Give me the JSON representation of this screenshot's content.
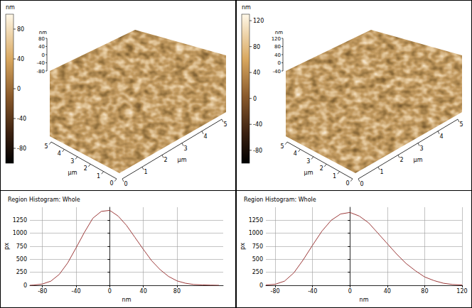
{
  "panels": [
    {
      "type": "afm_3d",
      "colorbar": {
        "label": "nm",
        "range": [
          -100,
          100
        ],
        "ticks": [
          -80,
          -40,
          0,
          40,
          80
        ]
      },
      "z_axis": {
        "label": "nm",
        "ticks": [
          80,
          40,
          0,
          -40,
          -80
        ]
      },
      "x_axis": {
        "label": "µm",
        "ticks": [
          0,
          1,
          2,
          3,
          4,
          5
        ]
      },
      "y_axis": {
        "label": "µm",
        "ticks": [
          0,
          1,
          2,
          3,
          4,
          5
        ]
      }
    },
    {
      "type": "afm_3d",
      "colorbar": {
        "label": "nm",
        "range": [
          -100,
          130
        ],
        "ticks": [
          -80,
          -40,
          0,
          40,
          80,
          120
        ]
      },
      "z_axis": {
        "label": "nm",
        "ticks": [
          120,
          80,
          40,
          0,
          -40
        ]
      },
      "x_axis": {
        "label": "µm",
        "ticks": [
          0,
          1,
          2,
          3,
          4,
          5
        ]
      },
      "y_axis": {
        "label": "µm",
        "ticks": [
          0,
          1,
          2,
          3,
          4,
          5
        ]
      }
    }
  ],
  "chart_data": [
    {
      "type": "line",
      "title": "Region Histogram: Whole",
      "x_label": "nm",
      "y_label": "px",
      "x": [
        -95,
        -90,
        -80,
        -70,
        -60,
        -50,
        -40,
        -30,
        -20,
        -10,
        0,
        10,
        20,
        30,
        40,
        50,
        60,
        70,
        80,
        90,
        100,
        110,
        120,
        130
      ],
      "values": [
        0,
        5,
        25,
        80,
        210,
        430,
        720,
        1020,
        1290,
        1420,
        1440,
        1330,
        1150,
        920,
        690,
        470,
        300,
        170,
        85,
        40,
        15,
        8,
        3,
        0
      ],
      "color": "#9c3a3a",
      "xlim": [
        -95,
        135
      ],
      "xticks": [
        -80,
        -40,
        0,
        40,
        80
      ],
      "ylim": [
        0,
        1500
      ],
      "yticks": [
        0,
        250,
        500,
        750,
        1000,
        1250
      ],
      "grid": true
    },
    {
      "type": "line",
      "title": "Region Histogram: Whole",
      "x_label": "nm",
      "y_label": "px",
      "x": [
        -90,
        -80,
        -70,
        -60,
        -50,
        -40,
        -30,
        -20,
        -10,
        0,
        10,
        20,
        30,
        40,
        50,
        60,
        70,
        80,
        90,
        100,
        110,
        120
      ],
      "values": [
        5,
        20,
        80,
        240,
        490,
        770,
        1040,
        1250,
        1370,
        1400,
        1330,
        1200,
        1000,
        800,
        600,
        420,
        280,
        160,
        90,
        40,
        15,
        5
      ],
      "color": "#9c3a3a",
      "xlim": [
        -90,
        120
      ],
      "xticks": [
        -80,
        -40,
        0,
        40,
        80,
        120
      ],
      "ylim": [
        0,
        1500
      ],
      "yticks": [
        0,
        250,
        500,
        750,
        1000,
        1250
      ],
      "grid": true
    }
  ]
}
